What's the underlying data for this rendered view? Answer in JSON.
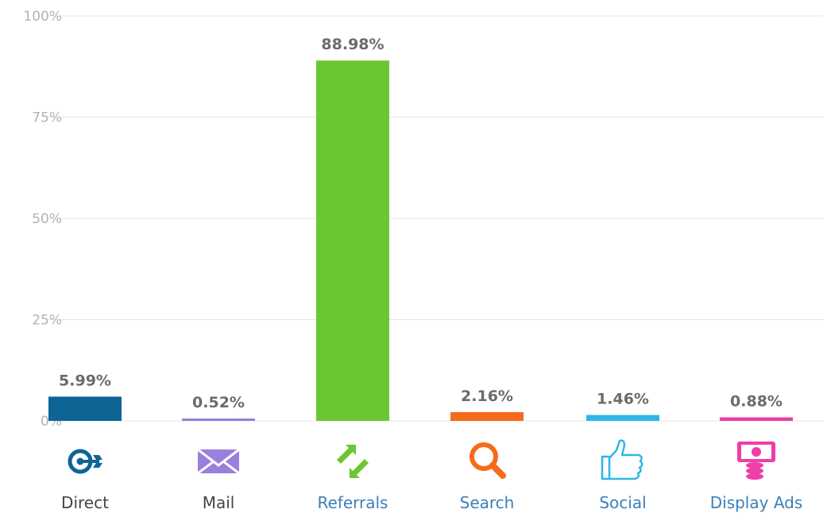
{
  "chart_data": {
    "type": "bar",
    "title": "",
    "xlabel": "",
    "ylabel": "",
    "ylim": [
      0,
      100
    ],
    "yticks": [
      "0%",
      "25%",
      "50%",
      "75%",
      "100%"
    ],
    "ytick_values": [
      0,
      25,
      50,
      75,
      100
    ],
    "grid": true,
    "categories": [
      "Direct",
      "Mail",
      "Referrals",
      "Search",
      "Social",
      "Display Ads"
    ],
    "values": [
      5.99,
      0.52,
      88.98,
      2.16,
      1.46,
      0.88
    ],
    "value_labels": [
      "5.99%",
      "0.52%",
      "88.98%",
      "2.16%",
      "1.46%",
      "0.88%"
    ],
    "colors": [
      "#0f6496",
      "#9a7fdc",
      "#6cc632",
      "#f56b1b",
      "#2fb6e6",
      "#ef3ea8"
    ],
    "label_colors": [
      "#444444",
      "#444444",
      "#3d7fb8",
      "#3d7fb8",
      "#3d7fb8",
      "#3d7fb8"
    ],
    "icons": [
      "direct-target-icon",
      "mail-envelope-icon",
      "referrals-arrows-icon",
      "search-magnifier-icon",
      "social-thumbs-up-icon",
      "display-ads-money-icon"
    ]
  }
}
